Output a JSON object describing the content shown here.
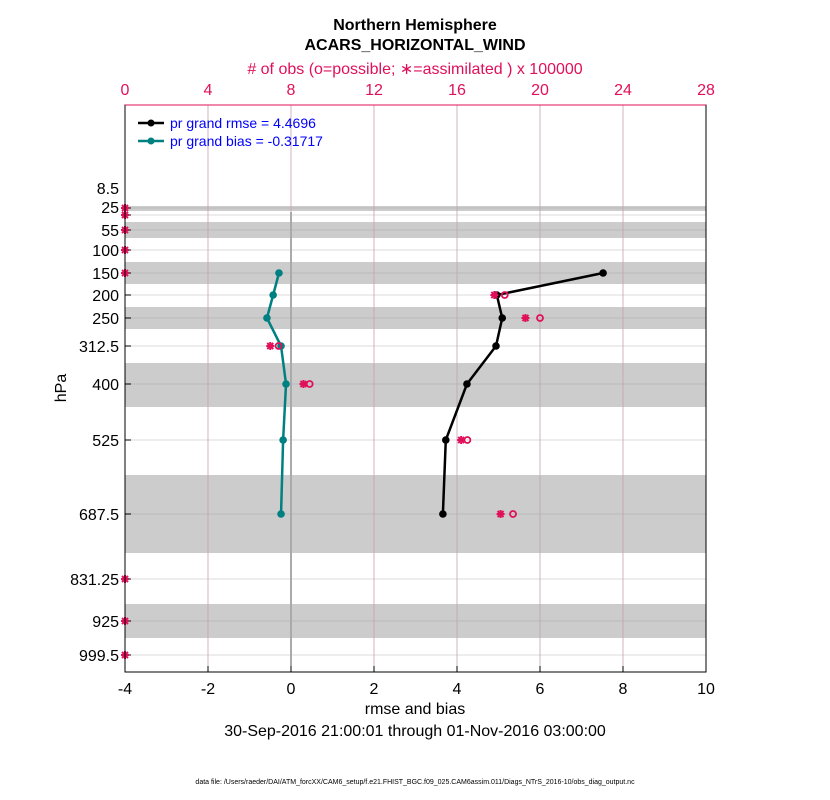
{
  "chart_data": {
    "type": "line",
    "title": "Northern Hemisphere",
    "subtitle": "ACARS_HORIZONTAL_WIND",
    "top_axis_label": "# of obs (o=possible; ∗=assimilated ) x 100000",
    "xlabel": "rmse and bias",
    "ylabel": "hPa",
    "date_range": "30-Sep-2016 21:00:01 through 01-Nov-2016 03:00:00",
    "footer": "data file: /Users/raeder/DAI/ATM_forcXX/CAM6_setup/f.e21.FHIST_BGC.f09_025.CAM6assim.011/Diags_NTrS_2016-10/obs_diag_output.nc",
    "xlim": [
      -4,
      10
    ],
    "xticks": [
      "-4",
      "-2",
      "0",
      "2",
      "4",
      "6",
      "8",
      "10"
    ],
    "top_xlim": [
      0,
      28
    ],
    "top_xticks": [
      "0",
      "4",
      "8",
      "12",
      "16",
      "20",
      "24",
      "28"
    ],
    "levels": [
      "8.5",
      "25",
      "55",
      "100",
      "150",
      "200",
      "250",
      "312.5",
      "400",
      "525",
      "687.5",
      "831.25",
      "925",
      "999.5"
    ],
    "legend": [
      "pr grand rmse = 4.4696",
      "pr grand bias = -0.31717"
    ],
    "legend_placement": "top-left",
    "series": [
      {
        "name": "rmse",
        "color": "#000000",
        "levels": [
          "150",
          "200",
          "250",
          "312.5",
          "400",
          "525",
          "687.5"
        ],
        "values": [
          7.52,
          4.96,
          5.09,
          4.94,
          4.24,
          3.73,
          3.66
        ]
      },
      {
        "name": "bias",
        "color": "#008080",
        "levels": [
          "150",
          "200",
          "250",
          "312.5",
          "400",
          "525",
          "687.5"
        ],
        "values": [
          -0.29,
          -0.43,
          -0.58,
          -0.24,
          -0.12,
          -0.19,
          -0.24
        ]
      }
    ],
    "obs_possible": {
      "levels": [
        "8.5",
        "25",
        "55",
        "100",
        "150",
        "200",
        "250",
        "312.5",
        "400",
        "525",
        "687.5",
        "831.25",
        "925",
        "999.5"
      ],
      "values": [
        0,
        0,
        0,
        0,
        0,
        18.3,
        20.0,
        7.4,
        8.9,
        16.5,
        18.7,
        0,
        0,
        0
      ]
    },
    "obs_assimilated": {
      "levels": [
        "8.5",
        "25",
        "55",
        "100",
        "150",
        "200",
        "250",
        "312.5",
        "400",
        "525",
        "687.5",
        "831.25",
        "925",
        "999.5"
      ],
      "values": [
        0,
        0,
        0,
        0,
        0,
        17.8,
        19.3,
        7.0,
        8.6,
        16.2,
        18.1,
        0,
        0,
        0
      ]
    },
    "colors": {
      "obs": "#e0105a",
      "grid_top": "#c8a0b0",
      "band": "#cccccc"
    }
  }
}
